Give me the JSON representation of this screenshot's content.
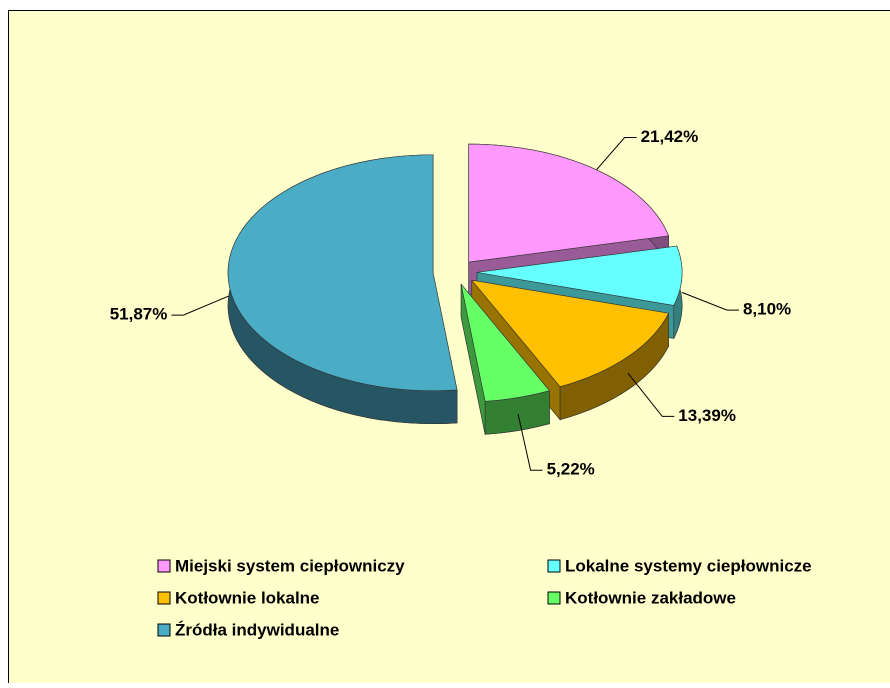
{
  "chart_data": {
    "type": "pie",
    "categories": [
      "Miejski system ciepłowniczy",
      "Lokalne systemy ciepłownicze",
      "Kotłownie lokalne",
      "Kotłownie zakładowe",
      "Źródła indywidualne"
    ],
    "values": [
      21.42,
      8.1,
      13.39,
      5.22,
      51.87
    ],
    "value_labels": [
      "21,42%",
      "8,10%",
      "13,39%",
      "5,22%",
      "51,87%"
    ],
    "colors": [
      "#ff99ff",
      "#66ffff",
      "#ffc000",
      "#66ff66",
      "#4bacc6"
    ]
  }
}
